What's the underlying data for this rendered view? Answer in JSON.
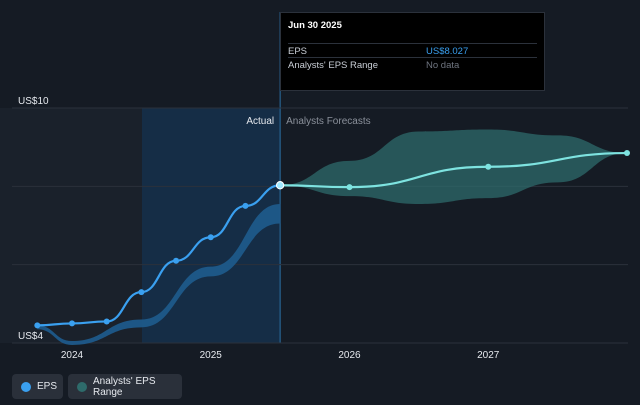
{
  "chart_data": {
    "type": "line",
    "y_ticks": [
      "US$10",
      "US$4"
    ],
    "ylim": [
      4,
      10
    ],
    "x_ticks": [
      {
        "label": "2024",
        "x": 2024.0
      },
      {
        "label": "2025",
        "x": 2025.0
      },
      {
        "label": "2026",
        "x": 2026.0
      },
      {
        "label": "2027",
        "x": 2027.0
      }
    ],
    "xlim": [
      2023.5,
      2028.0
    ],
    "region_labels": {
      "actual": "Actual",
      "forecast": "Analysts Forecasts"
    },
    "series": [
      {
        "name": "EPS",
        "color": "#3aa0f0",
        "points": [
          {
            "x": 2023.75,
            "y": 4.45
          },
          {
            "x": 2024.0,
            "y": 4.5
          },
          {
            "x": 2024.25,
            "y": 4.55
          },
          {
            "x": 2024.5,
            "y": 5.3
          },
          {
            "x": 2024.75,
            "y": 6.1
          },
          {
            "x": 2025.0,
            "y": 6.7
          },
          {
            "x": 2025.25,
            "y": 7.5
          },
          {
            "x": 2025.5,
            "y": 8.027
          }
        ]
      },
      {
        "name": "EPS Forecast",
        "color": "#7ee3e0",
        "points": [
          {
            "x": 2025.5,
            "y": 8.027
          },
          {
            "x": 2026.0,
            "y": 7.98
          },
          {
            "x": 2027.0,
            "y": 8.5
          },
          {
            "x": 2028.0,
            "y": 8.85
          }
        ]
      }
    ],
    "range_band": {
      "name": "Analysts' EPS Range",
      "color": "#2e6b6b",
      "points": [
        {
          "x": 2025.5,
          "low": 8.027,
          "high": 8.027
        },
        {
          "x": 2026.0,
          "low": 7.75,
          "high": 8.65
        },
        {
          "x": 2026.5,
          "low": 7.55,
          "high": 9.4
        },
        {
          "x": 2027.0,
          "low": 7.7,
          "high": 9.45
        },
        {
          "x": 2027.5,
          "low": 8.1,
          "high": 9.3
        },
        {
          "x": 2028.0,
          "low": 8.85,
          "high": 8.85
        }
      ]
    },
    "past_band": {
      "color": "#1e5a8a",
      "points": [
        {
          "x": 2023.75,
          "low": 4.35,
          "high": 4.45
        },
        {
          "x": 2024.0,
          "low": 3.95,
          "high": 4.05
        },
        {
          "x": 2024.5,
          "low": 4.4,
          "high": 4.6
        },
        {
          "x": 2025.0,
          "low": 5.7,
          "high": 5.95
        },
        {
          "x": 2025.5,
          "low": 7.05,
          "high": 7.55
        }
      ]
    },
    "highlight_x": 2025.5
  },
  "tooltip": {
    "date": "Jun 30 2025",
    "rows": [
      {
        "label": "EPS",
        "value": "US$8.027"
      },
      {
        "label": "Analysts' EPS Range",
        "value": "No data"
      }
    ]
  },
  "legend": {
    "eps": "EPS",
    "range": "Analysts' EPS Range"
  }
}
